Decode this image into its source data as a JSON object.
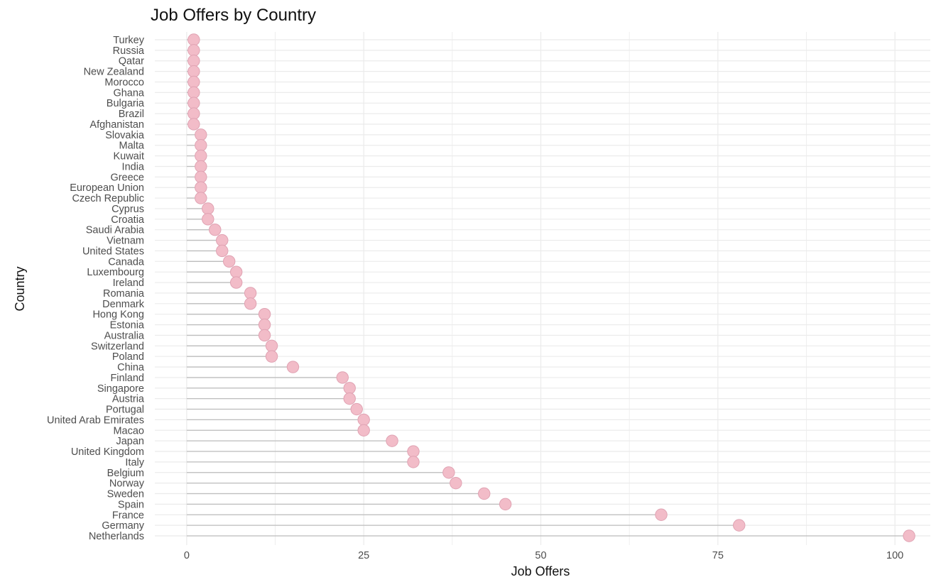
{
  "chart_data": {
    "type": "lollipop",
    "title": "Job Offers by Country",
    "xlabel": "Job Offers",
    "ylabel": "Country",
    "xlim": [
      -4.5,
      105
    ],
    "xticks": [
      0,
      25,
      50,
      75,
      100
    ],
    "grid": true,
    "colors": {
      "point_fill": "#f2bcc8",
      "point_stroke": "#e0a3b3",
      "stem": "#bdbdbd",
      "grid": "#ebebeb"
    },
    "categories": [
      "Turkey",
      "Russia",
      "Qatar",
      "New Zealand",
      "Morocco",
      "Ghana",
      "Bulgaria",
      "Brazil",
      "Afghanistan",
      "Slovakia",
      "Malta",
      "Kuwait",
      "India",
      "Greece",
      "European Union",
      "Czech Republic",
      "Cyprus",
      "Croatia",
      "Saudi Arabia",
      "Vietnam",
      "United States",
      "Canada",
      "Luxembourg",
      "Ireland",
      "Romania",
      "Denmark",
      "Hong Kong",
      "Estonia",
      "Australia",
      "Switzerland",
      "Poland",
      "China",
      "Finland",
      "Singapore",
      "Austria",
      "Portugal",
      "United Arab Emirates",
      "Macao",
      "Japan",
      "United Kingdom",
      "Italy",
      "Belgium",
      "Norway",
      "Sweden",
      "Spain",
      "France",
      "Germany",
      "Netherlands"
    ],
    "values": [
      1,
      1,
      1,
      1,
      1,
      1,
      1,
      1,
      1,
      2,
      2,
      2,
      2,
      2,
      2,
      2,
      3,
      3,
      4,
      5,
      5,
      6,
      7,
      7,
      9,
      9,
      11,
      11,
      11,
      12,
      12,
      15,
      22,
      23,
      23,
      24,
      25,
      25,
      29,
      32,
      32,
      37,
      38,
      42,
      45,
      67,
      78,
      102
    ]
  }
}
